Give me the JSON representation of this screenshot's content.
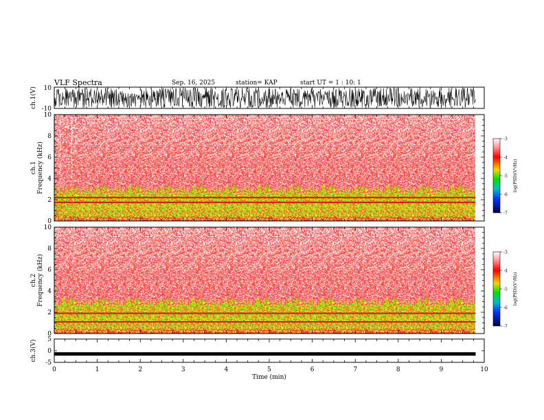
{
  "header": {
    "title": "VLF Spectra",
    "date": "Sep. 16, 2025",
    "station": "station= KAP",
    "start": "start  UT  =   1 : 10: 1"
  },
  "chart_data": [
    {
      "type": "line",
      "name": "waveform-ch1",
      "ylabel": "ch.1(V)",
      "ylim": [
        -10,
        10
      ],
      "ytick_labels": [
        "10",
        "-10"
      ],
      "xlim": [
        0,
        10
      ],
      "data_end_min": 9.8
    },
    {
      "type": "heatmap",
      "name": "spectrogram-ch1",
      "ylabel_top": "ch.1",
      "ylabel": "Frequency (kHz)",
      "ylim": [
        0,
        10
      ],
      "ytick_values": [
        0,
        2,
        4,
        6,
        8,
        10
      ],
      "ytick_labels": [
        "0",
        "2",
        "4",
        "6",
        "8",
        "10"
      ],
      "xlim": [
        0,
        10
      ],
      "data_end_min": 9.8,
      "hum_lines_khz": [
        2.2,
        1.75
      ],
      "colorbar": {
        "label": "log(PSD)(V²/Hz)",
        "range": [
          -7,
          -3
        ],
        "tick_labels": [
          "-3",
          "-4",
          "-5",
          "-6",
          "-7"
        ]
      }
    },
    {
      "type": "heatmap",
      "name": "spectrogram-ch2",
      "ylabel_top": "ch.2",
      "ylabel": "Frequency (kHz)",
      "ylim": [
        0,
        10
      ],
      "ytick_values": [
        0,
        2,
        4,
        6,
        8,
        10
      ],
      "ytick_labels": [
        "0",
        "2",
        "4",
        "6",
        "8",
        "10"
      ],
      "xlim": [
        0,
        10
      ],
      "data_end_min": 9.8,
      "hum_lines_khz": [
        1.9,
        1.1
      ],
      "colorbar": {
        "label": "log(PSD)(V²/Hz)",
        "range": [
          -7,
          -3
        ],
        "tick_labels": [
          "-3",
          "-4",
          "-5",
          "-6",
          "-7"
        ]
      }
    },
    {
      "type": "line",
      "name": "waveform-ch3",
      "ylabel": "ch.3(V)",
      "ylim": [
        -5,
        5
      ],
      "ytick_values": [
        5,
        0,
        -5
      ],
      "ytick_labels": [
        "5",
        "0",
        "-5"
      ],
      "signal_center_v": -1.4,
      "xlim": [
        0,
        10
      ],
      "data_end_min": 9.8
    }
  ],
  "xaxis": {
    "label": "Time (min)",
    "range": [
      0,
      10
    ],
    "tick_values": [
      0,
      1,
      2,
      3,
      4,
      5,
      6,
      7,
      8,
      9,
      10
    ],
    "tick_labels": [
      "0",
      "1",
      "2",
      "3",
      "4",
      "5",
      "6",
      "7",
      "8",
      "9",
      "10"
    ]
  }
}
